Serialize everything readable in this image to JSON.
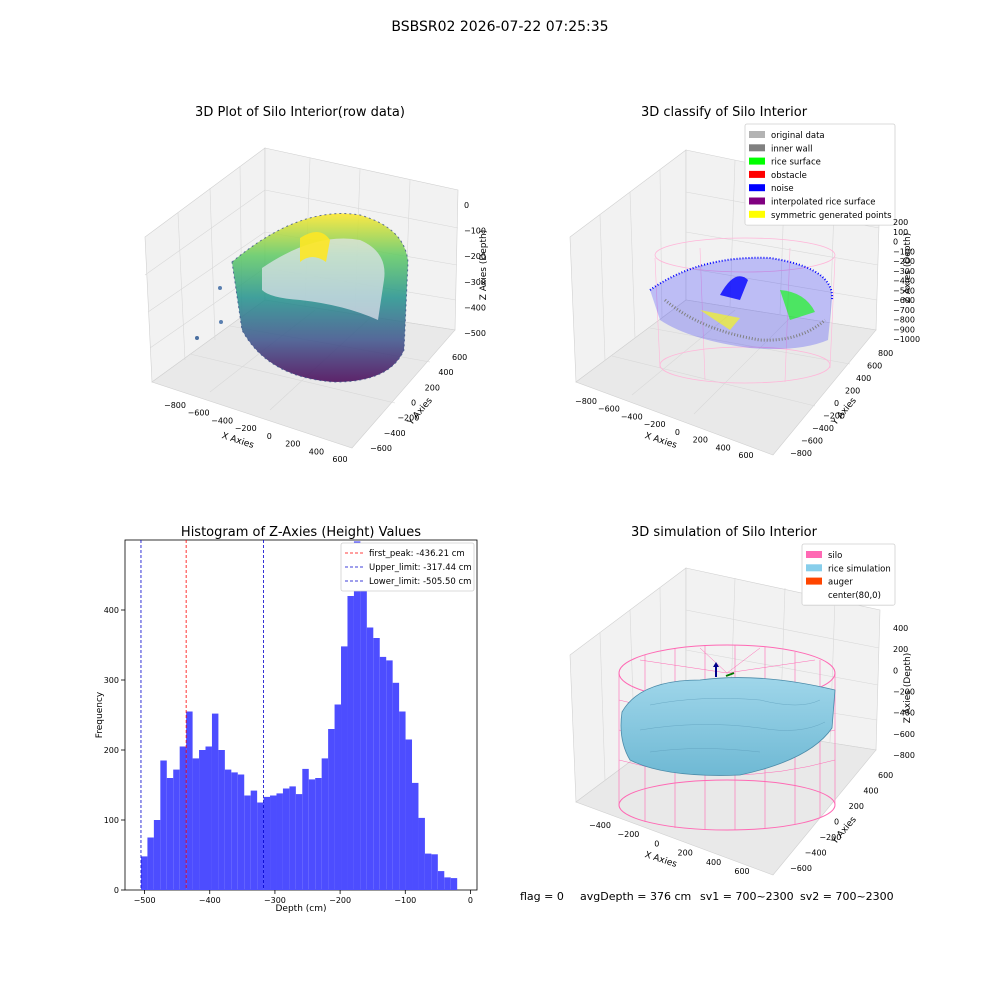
{
  "suptitle": "BSBSR02 2026-07-22 07:25:35",
  "footer": {
    "flag": "flag = 0",
    "avg": "avgDepth = 376 cm",
    "sv1": "sv1 = 700~2300",
    "sv2": "sv2 = 700~2300"
  },
  "chart_data": [
    {
      "type": "scatter",
      "title": "3D Plot of Silo Interior(row data)",
      "xlabel": "X Axies",
      "ylabel": "Y Axies",
      "zlabel": "Z Axies (Depth)",
      "xticks": [
        "−800",
        "−600",
        "−400",
        "−200",
        "0",
        "200",
        "400",
        "600"
      ],
      "yticks": [
        "600",
        "400",
        "200",
        "0",
        "−200",
        "−400",
        "−600"
      ],
      "zticks": [
        "0",
        "−100",
        "−200",
        "−300",
        "−400",
        "−500"
      ],
      "colormap": "viridis"
    },
    {
      "type": "scatter",
      "title": "3D classify of Silo Interior",
      "xlabel": "X Axies",
      "ylabel": "Y Axies",
      "zlabel": "Z Axies (Depth)",
      "xticks": [
        "−800",
        "−600",
        "−400",
        "−200",
        "0",
        "200",
        "400",
        "600"
      ],
      "yticks": [
        "800",
        "600",
        "400",
        "200",
        "0",
        "−200",
        "−400",
        "−600",
        "−800"
      ],
      "zticks": [
        "200",
        "100",
        "0",
        "−100",
        "−200",
        "−300",
        "−400",
        "−500",
        "−600",
        "−700",
        "−800",
        "−900",
        "−1000"
      ],
      "legend": [
        {
          "label": "original data",
          "color": "#b3b3b3"
        },
        {
          "label": "inner wall",
          "color": "#808080"
        },
        {
          "label": "rice surface",
          "color": "#00ff00"
        },
        {
          "label": "obstacle",
          "color": "#ff0000"
        },
        {
          "label": "noise",
          "color": "#0000ff"
        },
        {
          "label": "interpolated rice surface",
          "color": "#800080"
        },
        {
          "label": "symmetric generated points",
          "color": "#ffff00"
        }
      ],
      "legend_position": "top-right"
    },
    {
      "type": "bar",
      "title": "Histogram of Z-Axies (Height) Values",
      "xlabel": "Depth (cm)",
      "ylabel": "Frequency",
      "xlim": [
        -530,
        10
      ],
      "ylim": [
        0,
        500
      ],
      "xticks": [
        {
          "v": -500,
          "t": "−500"
        },
        {
          "v": -400,
          "t": "−400"
        },
        {
          "v": -300,
          "t": "−300"
        },
        {
          "v": -200,
          "t": "−200"
        },
        {
          "v": -100,
          "t": "−100"
        },
        {
          "v": 0,
          "t": "0"
        }
      ],
      "yticks": [
        {
          "v": 0,
          "t": "0"
        },
        {
          "v": 100,
          "t": "100"
        },
        {
          "v": 200,
          "t": "200"
        },
        {
          "v": 300,
          "t": "300"
        },
        {
          "v": 400,
          "t": "400"
        }
      ],
      "bin_start": -505.5,
      "bin_width": 9.9,
      "values": [
        48,
        75,
        100,
        185,
        160,
        172,
        205,
        255,
        188,
        200,
        205,
        252,
        200,
        172,
        168,
        165,
        135,
        142,
        125,
        133,
        135,
        138,
        145,
        148,
        137,
        173,
        158,
        160,
        188,
        230,
        265,
        348,
        420,
        498,
        438,
        375,
        360,
        333,
        328,
        296,
        255,
        215,
        153,
        103,
        52,
        51,
        27,
        18,
        17
      ],
      "bar_color": "#4d4dff",
      "lines": [
        {
          "label": "first_peak: -436.21 cm",
          "value": -436.21,
          "color": "#ff0000"
        },
        {
          "label": "Upper_limit: -317.44 cm",
          "value": -317.44,
          "color": "#0000cc"
        },
        {
          "label": "Lower_limit: -505.50 cm",
          "value": -505.5,
          "color": "#0000cc"
        }
      ],
      "legend_position": "top-right"
    },
    {
      "type": "surface",
      "title": "3D simulation of Silo Interior",
      "xlabel": "X Axies",
      "ylabel": "Y Axies",
      "zlabel": "Z Axies (Depth)",
      "xticks": [
        "−400",
        "−200",
        "0",
        "200",
        "400",
        "600"
      ],
      "yticks": [
        "600",
        "400",
        "200",
        "0",
        "−200",
        "−400",
        "−600"
      ],
      "zticks": [
        "400",
        "200",
        "0",
        "−200",
        "−400",
        "−600",
        "−800"
      ],
      "legend": [
        {
          "label": "silo",
          "color": "#ff69b4"
        },
        {
          "label": "rice simulation",
          "color": "#87ceeb"
        },
        {
          "label": "auger",
          "color": "#ff4500"
        },
        {
          "label": "center(80,0)",
          "color": "#ffffff"
        }
      ],
      "legend_position": "top-right"
    }
  ]
}
